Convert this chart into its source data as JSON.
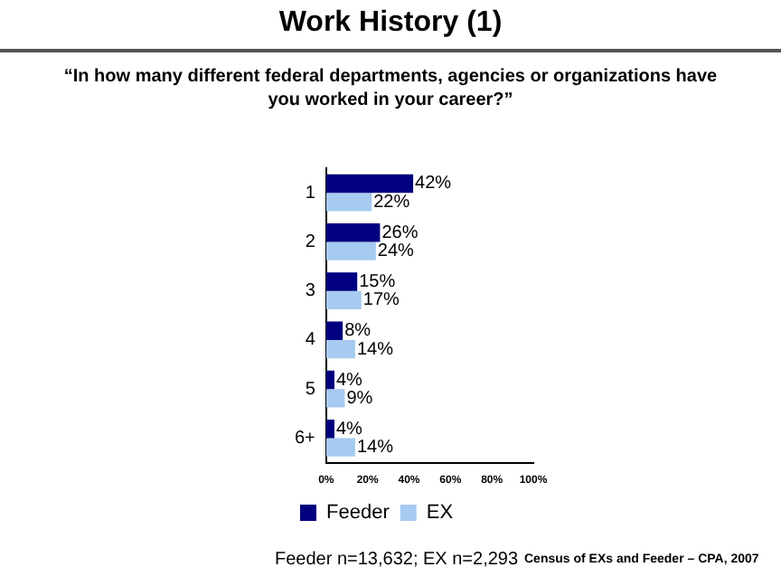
{
  "chart_data": {
    "type": "bar",
    "orientation": "horizontal",
    "title": "Work History (1)",
    "subtitle": "“In how many different federal departments, agencies or organizations have you worked in your career?”",
    "categories": [
      "1",
      "2",
      "3",
      "4",
      "5",
      "6+"
    ],
    "series": [
      {
        "name": "Feeder",
        "color": "#000080",
        "values": [
          42,
          26,
          15,
          8,
          4,
          4
        ],
        "value_labels": [
          "42%",
          "26%",
          "15%",
          "8%",
          "4%",
          "4%"
        ]
      },
      {
        "name": "EX",
        "color": "#a6caf0",
        "values": [
          22,
          24,
          17,
          14,
          9,
          14
        ],
        "value_labels": [
          "22%",
          "24%",
          "17%",
          "14%",
          "9%",
          "14%"
        ]
      }
    ],
    "xlim": [
      0,
      100
    ],
    "xticks": [
      {
        "value": 0,
        "label": "0%"
      },
      {
        "value": 20,
        "label": "20%"
      },
      {
        "value": 40,
        "label": "40%"
      },
      {
        "value": 60,
        "label": "60%"
      },
      {
        "value": 80,
        "label": "80%"
      },
      {
        "value": 100,
        "label": "100%"
      }
    ],
    "grid": false,
    "legend": "bottom",
    "annotations": [
      "Feeder n=13,632; EX n=2,293",
      "Census of EXs and Feeder – CPA, 2007"
    ]
  }
}
